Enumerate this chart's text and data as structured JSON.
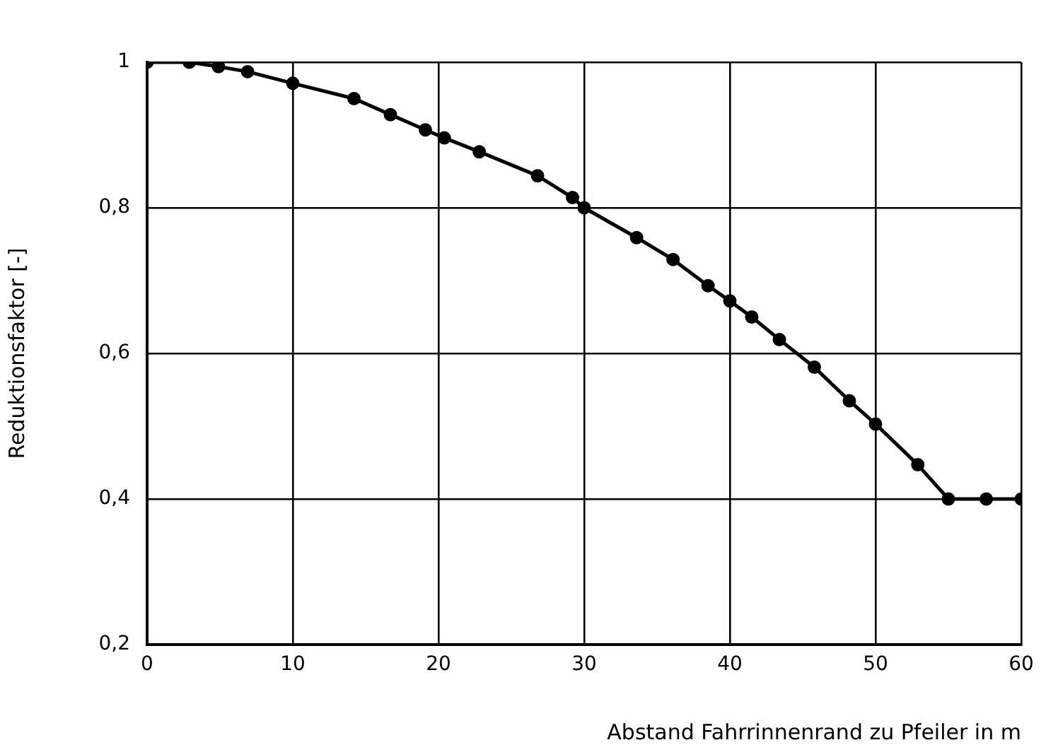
{
  "chart_data": {
    "type": "line",
    "xlabel": "Abstand Fahrrinnenrand zu Pfeiler in m",
    "ylabel": "Reduktionsfaktor [-]",
    "x": [
      0,
      2.9,
      4.9,
      6.9,
      10,
      14.2,
      16.7,
      19.1,
      20.4,
      22.8,
      26.8,
      29.2,
      30,
      33.6,
      36.1,
      38.5,
      40,
      41.5,
      43.4,
      45.8,
      48.2,
      50,
      52.9,
      55,
      57.6,
      60
    ],
    "series": [
      {
        "color": "#000000",
        "values": [
          1,
          1,
          0.994,
          0.987,
          0.971,
          0.95,
          0.928,
          0.907,
          0.896,
          0.877,
          0.844,
          0.814,
          0.8,
          0.759,
          0.729,
          0.693,
          0.672,
          0.65,
          0.619,
          0.581,
          0.535,
          0.503,
          0.447,
          0.4,
          0.4,
          0.4
        ]
      }
    ],
    "xlim": [
      0,
      60
    ],
    "xticks": [
      0,
      10,
      20,
      30,
      40,
      50,
      60
    ],
    "ylim": [
      0.2,
      1
    ],
    "yticks": [
      {
        "value": 0.2,
        "label": "0,2"
      },
      {
        "value": 0.4,
        "label": "0,4"
      },
      {
        "value": 0.6,
        "label": "0,6"
      },
      {
        "value": 0.8,
        "label": "0,8"
      },
      1
    ],
    "grid": true,
    "marker": "circle",
    "line_style": "solid",
    "legend": false
  }
}
